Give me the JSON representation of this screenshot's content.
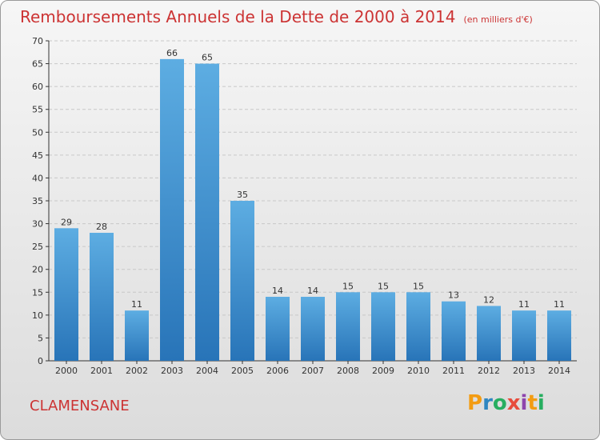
{
  "title": "Remboursements Annuels de la Dette de 2000 à 2014",
  "unit": "(en milliers d'€)",
  "commune": "CLAMENSANE",
  "logo": {
    "letters": [
      "P",
      "r",
      "o",
      "x",
      "i",
      "t",
      "i"
    ],
    "colors": [
      "#f39c12",
      "#2e86c1",
      "#27ae60",
      "#e74c3c",
      "#8e44ad",
      "#f39c12",
      "#27ae60"
    ]
  },
  "colors": {
    "bar_top": "#5dade2",
    "bar_bottom": "#2874b8",
    "title": "#cc3333",
    "axis": "#333333"
  },
  "chart_data": {
    "type": "bar",
    "title": "Remboursements Annuels de la Dette de 2000 à 2014",
    "categories": [
      "2000",
      "2001",
      "2002",
      "2003",
      "2004",
      "2005",
      "2006",
      "2007",
      "2008",
      "2009",
      "2010",
      "2011",
      "2012",
      "2013",
      "2014"
    ],
    "values": [
      29,
      28,
      11,
      66,
      65,
      35,
      14,
      14,
      15,
      15,
      15,
      13,
      12,
      11,
      11
    ],
    "ylim": [
      0,
      70
    ],
    "yticks": [
      0,
      5,
      10,
      15,
      20,
      25,
      30,
      35,
      40,
      45,
      50,
      55,
      60,
      65,
      70
    ],
    "grid": true,
    "grid_axis": "y",
    "legend": "none"
  }
}
